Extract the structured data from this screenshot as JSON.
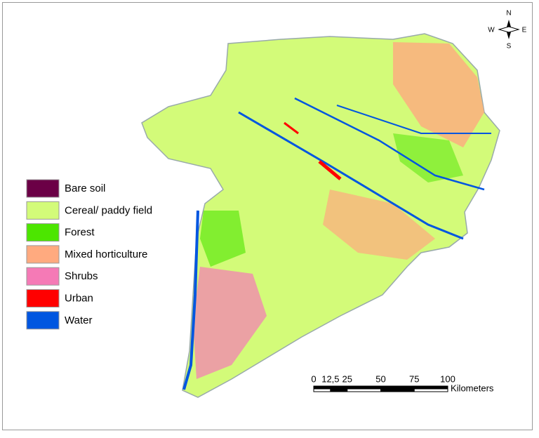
{
  "legend": {
    "items": [
      {
        "label": "Bare soil",
        "color": "#6b0046"
      },
      {
        "label": "Cereal/ paddy field",
        "color": "#d3fb79"
      },
      {
        "label": "Forest",
        "color": "#4ce600"
      },
      {
        "label": "Mixed horticulture",
        "color": "#ffaa7f"
      },
      {
        "label": "Shrubs",
        "color": "#f57ab6"
      },
      {
        "label": "Urban",
        "color": "#ff0000"
      },
      {
        "label": "Water",
        "color": "#0056e0"
      }
    ]
  },
  "compass": {
    "n": "N",
    "e": "E",
    "s": "S",
    "w": "W"
  },
  "scale_bar": {
    "ticks": [
      0,
      {
        "value": 12.5,
        "label": "12,5"
      },
      25,
      50,
      75,
      100
    ],
    "unit": "Kilometers"
  }
}
